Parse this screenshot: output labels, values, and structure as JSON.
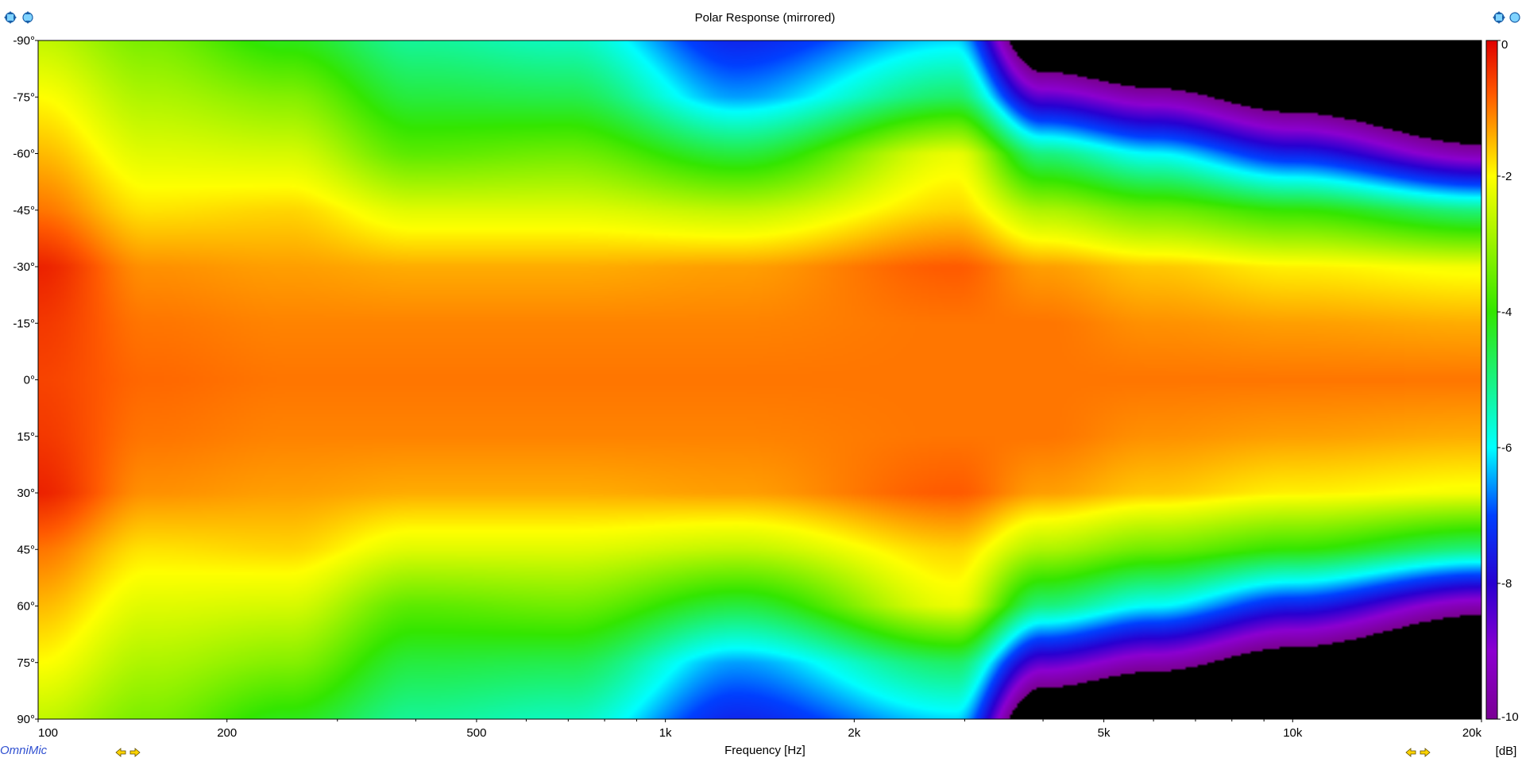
{
  "chart_data": {
    "type": "heatmap",
    "title": "Polar Response (mirrored)",
    "xlabel": "Frequency [Hz]",
    "ylabel": "",
    "x_scale": "log",
    "xlim": [
      100,
      20000
    ],
    "ylim": [
      -90,
      90
    ],
    "x_ticks": [
      {
        "value": 100,
        "label": "100"
      },
      {
        "value": 200,
        "label": "200"
      },
      {
        "value": 500,
        "label": "500"
      },
      {
        "value": 1000,
        "label": "1k"
      },
      {
        "value": 2000,
        "label": "2k"
      },
      {
        "value": 5000,
        "label": "5k"
      },
      {
        "value": 10000,
        "label": "10k"
      },
      {
        "value": 20000,
        "label": "20k"
      }
    ],
    "y_ticks": [
      {
        "value": -90,
        "label": "-90°"
      },
      {
        "value": -75,
        "label": "-75°"
      },
      {
        "value": -60,
        "label": "-60°"
      },
      {
        "value": -45,
        "label": "-45°"
      },
      {
        "value": -30,
        "label": "-30°"
      },
      {
        "value": -15,
        "label": "-15°"
      },
      {
        "value": 0,
        "label": "0°"
      },
      {
        "value": 15,
        "label": "15°"
      },
      {
        "value": 30,
        "label": "30°"
      },
      {
        "value": 45,
        "label": "45°"
      },
      {
        "value": 60,
        "label": "60°"
      },
      {
        "value": 75,
        "label": "75°"
      },
      {
        "value": 90,
        "label": "90°"
      }
    ],
    "colorbar": {
      "unit": "[dB]",
      "range": [
        -10,
        0
      ],
      "ticks": [
        {
          "value": 0,
          "label": "0"
        },
        {
          "value": -2,
          "label": "-2"
        },
        {
          "value": -4,
          "label": "-4"
        },
        {
          "value": -6,
          "label": "-6"
        },
        {
          "value": -8,
          "label": "-8"
        },
        {
          "value": -10,
          "label": "-10"
        }
      ],
      "below_range_color": "#000000"
    },
    "grid": false,
    "series": [
      {
        "angle": 0,
        "values": [
          -0.6,
          -0.9,
          -1.0,
          -1.0,
          -1.0,
          -1.0,
          -1.0,
          -1.0,
          -1.0,
          -1.0,
          -1.0
        ]
      },
      {
        "angle": 15,
        "values": [
          -0.5,
          -1.0,
          -1.1,
          -1.1,
          -1.1,
          -1.1,
          -1.0,
          -1.0,
          -1.2,
          -1.3,
          -1.4
        ]
      },
      {
        "angle": 30,
        "values": [
          -0.3,
          -1.2,
          -1.3,
          -1.4,
          -1.4,
          -1.3,
          -0.8,
          -1.3,
          -1.6,
          -1.9,
          -2.1
        ]
      },
      {
        "angle": 45,
        "values": [
          -1.0,
          -1.8,
          -1.7,
          -2.3,
          -2.3,
          -2.6,
          -1.7,
          -2.8,
          -3.4,
          -4.0,
          -5.0
        ]
      },
      {
        "angle": 60,
        "values": [
          -1.5,
          -2.3,
          -2.4,
          -3.6,
          -3.4,
          -4.5,
          -2.2,
          -5.0,
          -6.0,
          -7.5,
          -9.5
        ]
      },
      {
        "angle": 75,
        "values": [
          -2.0,
          -2.8,
          -3.2,
          -4.5,
          -4.6,
          -6.5,
          -4.8,
          -8.5,
          -9.5,
          -11.0,
          -13.0
        ]
      },
      {
        "angle": 90,
        "values": [
          -2.6,
          -3.3,
          -4.2,
          -5.2,
          -5.5,
          -7.4,
          -6.2,
          -12.0,
          -13.0,
          -14.0,
          -15.0
        ]
      }
    ],
    "x": [
      100,
      150,
      250,
      400,
      700,
      1300,
      2900,
      4000,
      6000,
      10000,
      20000
    ]
  },
  "controls": {
    "left": [
      "move-cursor-icon",
      "zoom-cursor-icon"
    ],
    "right": [
      "move-cursor-icon",
      "zoom-cursor-icon"
    ]
  },
  "brand": "OmniMic"
}
